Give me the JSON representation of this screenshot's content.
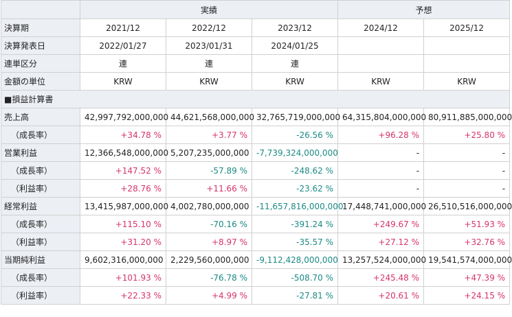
{
  "header": {
    "actual": "実績",
    "forecast": "予想"
  },
  "meta_rows": [
    {
      "label": "決算期",
      "values": [
        "2021/12",
        "2022/12",
        "2023/12",
        "2024/12",
        "2025/12"
      ]
    },
    {
      "label": "決算発表日",
      "values": [
        "2022/01/27",
        "2023/01/31",
        "2024/01/25",
        "",
        ""
      ]
    },
    {
      "label": "連単区分",
      "values": [
        "連",
        "連",
        "連",
        "",
        ""
      ]
    },
    {
      "label": "金額の単位",
      "values": [
        "KRW",
        "KRW",
        "KRW",
        "KRW",
        "KRW"
      ]
    }
  ],
  "section_title": "■損益計算書",
  "data_rows": [
    {
      "label": "売上高",
      "indent": false,
      "values": [
        "42,997,792,000,000",
        "44,621,568,000,000",
        "32,765,719,000,000",
        "64,315,804,000,000",
        "80,911,885,000,000"
      ],
      "tones": [
        "",
        "",
        "",
        "",
        ""
      ]
    },
    {
      "label": "（成長率）",
      "indent": true,
      "values": [
        "+34.78 %",
        "+3.77 %",
        "-26.56 %",
        "+96.28 %",
        "+25.80 %"
      ],
      "tones": [
        "pos",
        "pos",
        "neg",
        "pos",
        "pos"
      ]
    },
    {
      "label": "営業利益",
      "indent": false,
      "values": [
        "12,366,548,000,000",
        "5,207,235,000,000",
        "-7,739,324,000,000",
        "-",
        "-"
      ],
      "tones": [
        "",
        "",
        "neg",
        "",
        ""
      ]
    },
    {
      "label": "（成長率）",
      "indent": true,
      "values": [
        "+147.52 %",
        "-57.89 %",
        "-248.62 %",
        "-",
        "-"
      ],
      "tones": [
        "pos",
        "neg",
        "neg",
        "",
        ""
      ]
    },
    {
      "label": "（利益率）",
      "indent": true,
      "values": [
        "+28.76 %",
        "+11.66 %",
        "-23.62 %",
        "-",
        "-"
      ],
      "tones": [
        "pos",
        "pos",
        "neg",
        "",
        ""
      ]
    },
    {
      "label": "経常利益",
      "indent": false,
      "values": [
        "13,415,987,000,000",
        "4,002,780,000,000",
        "-11,657,816,000,000",
        "17,448,741,000,000",
        "26,510,516,000,000"
      ],
      "tones": [
        "",
        "",
        "neg",
        "",
        ""
      ]
    },
    {
      "label": "（成長率）",
      "indent": true,
      "values": [
        "+115.10 %",
        "-70.16 %",
        "-391.24 %",
        "+249.67 %",
        "+51.93 %"
      ],
      "tones": [
        "pos",
        "neg",
        "neg",
        "pos",
        "pos"
      ]
    },
    {
      "label": "（利益率）",
      "indent": true,
      "values": [
        "+31.20 %",
        "+8.97 %",
        "-35.57 %",
        "+27.12 %",
        "+32.76 %"
      ],
      "tones": [
        "pos",
        "pos",
        "neg",
        "pos",
        "pos"
      ]
    },
    {
      "label": "当期純利益",
      "indent": false,
      "values": [
        "9,602,316,000,000",
        "2,229,560,000,000",
        "-9,112,428,000,000",
        "13,257,524,000,000",
        "19,541,574,000,000"
      ],
      "tones": [
        "",
        "",
        "neg",
        "",
        ""
      ]
    },
    {
      "label": "（成長率）",
      "indent": true,
      "values": [
        "+101.93 %",
        "-76.78 %",
        "-508.70 %",
        "+245.48 %",
        "+47.39 %"
      ],
      "tones": [
        "pos",
        "neg",
        "neg",
        "pos",
        "pos"
      ]
    },
    {
      "label": "（利益率）",
      "indent": true,
      "values": [
        "+22.33 %",
        "+4.99 %",
        "-27.81 %",
        "+20.61 %",
        "+24.15 %"
      ],
      "tones": [
        "pos",
        "pos",
        "neg",
        "pos",
        "pos"
      ]
    }
  ],
  "colors": {
    "positive": "#d6336c",
    "negative": "#1b8a85",
    "header_bg": "#eceff4",
    "border": "#d0d0d0"
  }
}
